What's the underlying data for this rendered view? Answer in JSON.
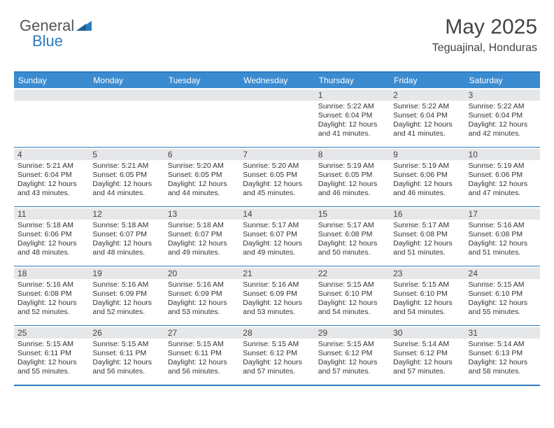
{
  "logo": {
    "part1": "General",
    "part2": "Blue"
  },
  "header": {
    "month": "May 2025",
    "location": "Teguajinal, Honduras"
  },
  "colors": {
    "brand_blue": "#3b8bd0",
    "border_blue": "#2e7bc0",
    "band_gray": "#e6e7e9",
    "text": "#333333"
  },
  "day_headers": [
    "Sunday",
    "Monday",
    "Tuesday",
    "Wednesday",
    "Thursday",
    "Friday",
    "Saturday"
  ],
  "weeks": [
    [
      {
        "n": "",
        "sr": "",
        "ss": "",
        "dl": ""
      },
      {
        "n": "",
        "sr": "",
        "ss": "",
        "dl": ""
      },
      {
        "n": "",
        "sr": "",
        "ss": "",
        "dl": ""
      },
      {
        "n": "",
        "sr": "",
        "ss": "",
        "dl": ""
      },
      {
        "n": "1",
        "sr": "Sunrise: 5:22 AM",
        "ss": "Sunset: 6:04 PM",
        "dl": "Daylight: 12 hours and 41 minutes."
      },
      {
        "n": "2",
        "sr": "Sunrise: 5:22 AM",
        "ss": "Sunset: 6:04 PM",
        "dl": "Daylight: 12 hours and 41 minutes."
      },
      {
        "n": "3",
        "sr": "Sunrise: 5:22 AM",
        "ss": "Sunset: 6:04 PM",
        "dl": "Daylight: 12 hours and 42 minutes."
      }
    ],
    [
      {
        "n": "4",
        "sr": "Sunrise: 5:21 AM",
        "ss": "Sunset: 6:04 PM",
        "dl": "Daylight: 12 hours and 43 minutes."
      },
      {
        "n": "5",
        "sr": "Sunrise: 5:21 AM",
        "ss": "Sunset: 6:05 PM",
        "dl": "Daylight: 12 hours and 44 minutes."
      },
      {
        "n": "6",
        "sr": "Sunrise: 5:20 AM",
        "ss": "Sunset: 6:05 PM",
        "dl": "Daylight: 12 hours and 44 minutes."
      },
      {
        "n": "7",
        "sr": "Sunrise: 5:20 AM",
        "ss": "Sunset: 6:05 PM",
        "dl": "Daylight: 12 hours and 45 minutes."
      },
      {
        "n": "8",
        "sr": "Sunrise: 5:19 AM",
        "ss": "Sunset: 6:05 PM",
        "dl": "Daylight: 12 hours and 46 minutes."
      },
      {
        "n": "9",
        "sr": "Sunrise: 5:19 AM",
        "ss": "Sunset: 6:06 PM",
        "dl": "Daylight: 12 hours and 46 minutes."
      },
      {
        "n": "10",
        "sr": "Sunrise: 5:19 AM",
        "ss": "Sunset: 6:06 PM",
        "dl": "Daylight: 12 hours and 47 minutes."
      }
    ],
    [
      {
        "n": "11",
        "sr": "Sunrise: 5:18 AM",
        "ss": "Sunset: 6:06 PM",
        "dl": "Daylight: 12 hours and 48 minutes."
      },
      {
        "n": "12",
        "sr": "Sunrise: 5:18 AM",
        "ss": "Sunset: 6:07 PM",
        "dl": "Daylight: 12 hours and 48 minutes."
      },
      {
        "n": "13",
        "sr": "Sunrise: 5:18 AM",
        "ss": "Sunset: 6:07 PM",
        "dl": "Daylight: 12 hours and 49 minutes."
      },
      {
        "n": "14",
        "sr": "Sunrise: 5:17 AM",
        "ss": "Sunset: 6:07 PM",
        "dl": "Daylight: 12 hours and 49 minutes."
      },
      {
        "n": "15",
        "sr": "Sunrise: 5:17 AM",
        "ss": "Sunset: 6:08 PM",
        "dl": "Daylight: 12 hours and 50 minutes."
      },
      {
        "n": "16",
        "sr": "Sunrise: 5:17 AM",
        "ss": "Sunset: 6:08 PM",
        "dl": "Daylight: 12 hours and 51 minutes."
      },
      {
        "n": "17",
        "sr": "Sunrise: 5:16 AM",
        "ss": "Sunset: 6:08 PM",
        "dl": "Daylight: 12 hours and 51 minutes."
      }
    ],
    [
      {
        "n": "18",
        "sr": "Sunrise: 5:16 AM",
        "ss": "Sunset: 6:08 PM",
        "dl": "Daylight: 12 hours and 52 minutes."
      },
      {
        "n": "19",
        "sr": "Sunrise: 5:16 AM",
        "ss": "Sunset: 6:09 PM",
        "dl": "Daylight: 12 hours and 52 minutes."
      },
      {
        "n": "20",
        "sr": "Sunrise: 5:16 AM",
        "ss": "Sunset: 6:09 PM",
        "dl": "Daylight: 12 hours and 53 minutes."
      },
      {
        "n": "21",
        "sr": "Sunrise: 5:16 AM",
        "ss": "Sunset: 6:09 PM",
        "dl": "Daylight: 12 hours and 53 minutes."
      },
      {
        "n": "22",
        "sr": "Sunrise: 5:15 AM",
        "ss": "Sunset: 6:10 PM",
        "dl": "Daylight: 12 hours and 54 minutes."
      },
      {
        "n": "23",
        "sr": "Sunrise: 5:15 AM",
        "ss": "Sunset: 6:10 PM",
        "dl": "Daylight: 12 hours and 54 minutes."
      },
      {
        "n": "24",
        "sr": "Sunrise: 5:15 AM",
        "ss": "Sunset: 6:10 PM",
        "dl": "Daylight: 12 hours and 55 minutes."
      }
    ],
    [
      {
        "n": "25",
        "sr": "Sunrise: 5:15 AM",
        "ss": "Sunset: 6:11 PM",
        "dl": "Daylight: 12 hours and 55 minutes."
      },
      {
        "n": "26",
        "sr": "Sunrise: 5:15 AM",
        "ss": "Sunset: 6:11 PM",
        "dl": "Daylight: 12 hours and 56 minutes."
      },
      {
        "n": "27",
        "sr": "Sunrise: 5:15 AM",
        "ss": "Sunset: 6:11 PM",
        "dl": "Daylight: 12 hours and 56 minutes."
      },
      {
        "n": "28",
        "sr": "Sunrise: 5:15 AM",
        "ss": "Sunset: 6:12 PM",
        "dl": "Daylight: 12 hours and 57 minutes."
      },
      {
        "n": "29",
        "sr": "Sunrise: 5:15 AM",
        "ss": "Sunset: 6:12 PM",
        "dl": "Daylight: 12 hours and 57 minutes."
      },
      {
        "n": "30",
        "sr": "Sunrise: 5:14 AM",
        "ss": "Sunset: 6:12 PM",
        "dl": "Daylight: 12 hours and 57 minutes."
      },
      {
        "n": "31",
        "sr": "Sunrise: 5:14 AM",
        "ss": "Sunset: 6:13 PM",
        "dl": "Daylight: 12 hours and 58 minutes."
      }
    ]
  ]
}
